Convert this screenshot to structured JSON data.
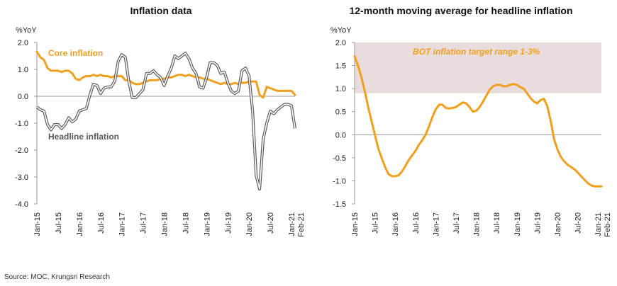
{
  "chart_data": [
    {
      "type": "line",
      "title": "Inflation data",
      "ylabel": "%YoY",
      "ylim": [
        -4.0,
        2.0
      ],
      "yticks": [
        "2.0",
        "1.0",
        "0.0",
        "-1.0",
        "-2.0",
        "-3.0",
        "-4.0"
      ],
      "ytick_values": [
        2,
        1,
        0,
        -1,
        -2,
        -3,
        -4
      ],
      "xlim": [
        "Jan-15",
        "Feb-21"
      ],
      "xtick_labels": [
        "Jan-15",
        "Jul-15",
        "Jan-16",
        "Jul-16",
        "Jan-17",
        "Jul-17",
        "Jan-18",
        "Jul-18",
        "Jan-19",
        "Jul-19",
        "Jan-20",
        "Jul-20",
        "Jan-21",
        "Feb-21"
      ],
      "xtick_months": [
        0,
        6,
        12,
        18,
        24,
        30,
        36,
        42,
        48,
        54,
        60,
        66,
        72,
        73
      ],
      "grid": false,
      "series": [
        {
          "name": "Core inflation",
          "color": "#F0A01E",
          "points": [
            [
              0,
              1.65
            ],
            [
              1,
              1.45
            ],
            [
              2,
              1.35
            ],
            [
              3,
              1.05
            ],
            [
              4,
              0.95
            ],
            [
              5,
              0.95
            ],
            [
              6,
              0.95
            ],
            [
              7,
              0.9
            ],
            [
              8,
              0.95
            ],
            [
              9,
              0.95
            ],
            [
              10,
              0.85
            ],
            [
              11,
              0.65
            ],
            [
              12,
              0.6
            ],
            [
              13,
              0.7
            ],
            [
              14,
              0.75
            ],
            [
              15,
              0.75
            ],
            [
              16,
              0.8
            ],
            [
              17,
              0.75
            ],
            [
              18,
              0.8
            ],
            [
              19,
              0.75
            ],
            [
              20,
              0.75
            ],
            [
              21,
              0.7
            ],
            [
              22,
              0.75
            ],
            [
              23,
              0.75
            ],
            [
              24,
              0.75
            ],
            [
              25,
              0.6
            ],
            [
              26,
              0.6
            ],
            [
              27,
              0.5
            ],
            [
              28,
              0.45
            ],
            [
              29,
              0.45
            ],
            [
              30,
              0.5
            ],
            [
              31,
              0.55
            ],
            [
              32,
              0.6
            ],
            [
              33,
              0.6
            ],
            [
              34,
              0.6
            ],
            [
              35,
              0.65
            ],
            [
              36,
              0.65
            ],
            [
              37,
              0.7
            ],
            [
              38,
              0.7
            ],
            [
              39,
              0.75
            ],
            [
              40,
              0.8
            ],
            [
              41,
              0.8
            ],
            [
              42,
              0.75
            ],
            [
              43,
              0.8
            ],
            [
              44,
              0.75
            ],
            [
              45,
              0.7
            ],
            [
              46,
              0.7
            ],
            [
              47,
              0.65
            ],
            [
              48,
              0.65
            ],
            [
              49,
              0.6
            ],
            [
              50,
              0.55
            ],
            [
              51,
              0.5
            ],
            [
              52,
              0.45
            ],
            [
              53,
              0.5
            ],
            [
              54,
              0.45
            ],
            [
              55,
              0.45
            ],
            [
              56,
              0.5
            ],
            [
              57,
              0.45
            ],
            [
              58,
              0.5
            ],
            [
              59,
              0.5
            ],
            [
              60,
              0.55
            ],
            [
              61,
              0.55
            ],
            [
              62,
              0.55
            ],
            [
              63,
              0.05
            ],
            [
              64,
              -0.05
            ],
            [
              65,
              0.35
            ],
            [
              66,
              0.3
            ],
            [
              67,
              0.25
            ],
            [
              68,
              0.2
            ],
            [
              69,
              0.2
            ],
            [
              70,
              0.2
            ],
            [
              71,
              0.2
            ],
            [
              72,
              0.2
            ],
            [
              73,
              0.05
            ]
          ]
        },
        {
          "name": "Headline inflation",
          "color": "#5F5A5A",
          "points": [
            [
              0,
              -0.4
            ],
            [
              1,
              -0.5
            ],
            [
              2,
              -0.55
            ],
            [
              3,
              -1.05
            ],
            [
              4,
              -1.25
            ],
            [
              5,
              -1.05
            ],
            [
              6,
              -1.05
            ],
            [
              7,
              -1.2
            ],
            [
              8,
              -1.05
            ],
            [
              9,
              -0.8
            ],
            [
              10,
              -0.95
            ],
            [
              11,
              -0.85
            ],
            [
              12,
              -0.55
            ],
            [
              13,
              -0.5
            ],
            [
              14,
              -0.45
            ],
            [
              15,
              0.05
            ],
            [
              16,
              0.45
            ],
            [
              17,
              0.4
            ],
            [
              18,
              0.1
            ],
            [
              19,
              0.3
            ],
            [
              20,
              0.35
            ],
            [
              21,
              0.35
            ],
            [
              22,
              0.55
            ],
            [
              23,
              1.3
            ],
            [
              24,
              1.55
            ],
            [
              25,
              1.45
            ],
            [
              26,
              0.55
            ],
            [
              27,
              -0.05
            ],
            [
              28,
              -0.05
            ],
            [
              29,
              0.1
            ],
            [
              30,
              0.25
            ],
            [
              31,
              0.85
            ],
            [
              32,
              0.85
            ],
            [
              33,
              0.95
            ],
            [
              34,
              0.8
            ],
            [
              35,
              0.7
            ],
            [
              36,
              0.4
            ],
            [
              37,
              0.75
            ],
            [
              38,
              1.05
            ],
            [
              39,
              1.5
            ],
            [
              40,
              1.4
            ],
            [
              41,
              1.5
            ],
            [
              42,
              1.6
            ],
            [
              43,
              1.4
            ],
            [
              44,
              1.05
            ],
            [
              45,
              0.85
            ],
            [
              46,
              0.35
            ],
            [
              47,
              0.3
            ],
            [
              48,
              0.7
            ],
            [
              49,
              1.25
            ],
            [
              50,
              1.25
            ],
            [
              51,
              1.15
            ],
            [
              52,
              0.85
            ],
            [
              53,
              0.9
            ],
            [
              54,
              0.5
            ],
            [
              55,
              0.2
            ],
            [
              56,
              0.1
            ],
            [
              57,
              0.2
            ],
            [
              58,
              0.95
            ],
            [
              59,
              1.05
            ],
            [
              60,
              0.75
            ],
            [
              61,
              -0.55
            ],
            [
              62,
              -2.95
            ],
            [
              63,
              -3.45
            ],
            [
              64,
              -1.6
            ],
            [
              65,
              -1.0
            ],
            [
              66,
              -0.55
            ],
            [
              67,
              -0.65
            ],
            [
              68,
              -0.5
            ],
            [
              69,
              -0.4
            ],
            [
              70,
              -0.3
            ],
            [
              71,
              -0.3
            ],
            [
              72,
              -0.35
            ],
            [
              73,
              -1.2
            ]
          ]
        }
      ]
    },
    {
      "type": "line",
      "title": "12-month moving average for headline inflation",
      "ylabel": "%YoY",
      "ylim": [
        -1.5,
        2.0
      ],
      "yticks": [
        "2.0",
        "1.5",
        "1.0",
        "0.5",
        "0.0",
        "-0.5",
        "-1.0",
        "-1.5"
      ],
      "ytick_values": [
        2,
        1.5,
        1,
        0.5,
        0,
        -0.5,
        -1,
        -1.5
      ],
      "xlim": [
        "Jan-15",
        "Feb-21"
      ],
      "xtick_labels": [
        "Jan-15",
        "Jul-15",
        "Jan-16",
        "Jul-16",
        "Jan-17",
        "Jul-17",
        "Jan-18",
        "Jul-18",
        "Jan-19",
        "Jul-19",
        "Jan-20",
        "Jul-20",
        "Jan-21",
        "Feb-21"
      ],
      "xtick_months": [
        0,
        6,
        12,
        18,
        24,
        30,
        36,
        42,
        48,
        54,
        60,
        66,
        72,
        73
      ],
      "grid": false,
      "band": {
        "label": "BOT inflation target range 1-3%",
        "from": 0.9,
        "to": 2.0,
        "color": "#E8DCDC",
        "label_color": "#F0A01E"
      },
      "series": [
        {
          "name": "",
          "color": "#F0A01E",
          "points": [
            [
              0,
              1.7
            ],
            [
              1,
              1.5
            ],
            [
              2,
              1.25
            ],
            [
              3,
              0.95
            ],
            [
              4,
              0.6
            ],
            [
              5,
              0.3
            ],
            [
              6,
              0.0
            ],
            [
              7,
              -0.3
            ],
            [
              8,
              -0.5
            ],
            [
              9,
              -0.7
            ],
            [
              10,
              -0.85
            ],
            [
              11,
              -0.9
            ],
            [
              12,
              -0.9
            ],
            [
              13,
              -0.88
            ],
            [
              14,
              -0.8
            ],
            [
              15,
              -0.68
            ],
            [
              16,
              -0.55
            ],
            [
              17,
              -0.45
            ],
            [
              18,
              -0.35
            ],
            [
              19,
              -0.22
            ],
            [
              20,
              -0.12
            ],
            [
              21,
              0.0
            ],
            [
              22,
              0.18
            ],
            [
              23,
              0.38
            ],
            [
              24,
              0.55
            ],
            [
              25,
              0.65
            ],
            [
              26,
              0.65
            ],
            [
              27,
              0.58
            ],
            [
              28,
              0.57
            ],
            [
              29,
              0.58
            ],
            [
              30,
              0.6
            ],
            [
              31,
              0.65
            ],
            [
              32,
              0.7
            ],
            [
              33,
              0.68
            ],
            [
              34,
              0.6
            ],
            [
              35,
              0.5
            ],
            [
              36,
              0.52
            ],
            [
              37,
              0.6
            ],
            [
              38,
              0.72
            ],
            [
              39,
              0.85
            ],
            [
              40,
              0.98
            ],
            [
              41,
              1.05
            ],
            [
              42,
              1.08
            ],
            [
              43,
              1.08
            ],
            [
              44,
              1.05
            ],
            [
              45,
              1.05
            ],
            [
              46,
              1.08
            ],
            [
              47,
              1.1
            ],
            [
              48,
              1.08
            ],
            [
              49,
              1.03
            ],
            [
              50,
              1.0
            ],
            [
              51,
              0.9
            ],
            [
              52,
              0.8
            ],
            [
              53,
              0.72
            ],
            [
              54,
              0.68
            ],
            [
              55,
              0.75
            ],
            [
              56,
              0.78
            ],
            [
              57,
              0.62
            ],
            [
              58,
              0.3
            ],
            [
              59,
              -0.1
            ],
            [
              60,
              -0.32
            ],
            [
              61,
              -0.48
            ],
            [
              62,
              -0.58
            ],
            [
              63,
              -0.65
            ],
            [
              64,
              -0.7
            ],
            [
              65,
              -0.75
            ],
            [
              66,
              -0.82
            ],
            [
              67,
              -0.9
            ],
            [
              68,
              -0.98
            ],
            [
              69,
              -1.05
            ],
            [
              70,
              -1.1
            ],
            [
              71,
              -1.12
            ],
            [
              72,
              -1.12
            ],
            [
              73,
              -1.12
            ]
          ]
        }
      ]
    }
  ],
  "annotations": {
    "core_label": "Core inflation",
    "headline_label": "Headline inflation"
  },
  "source": "Source: MOC, Krungsri Research"
}
